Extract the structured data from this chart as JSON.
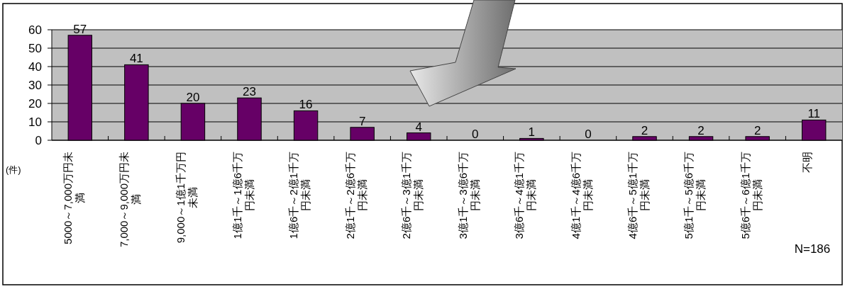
{
  "chart_data": {
    "type": "bar",
    "ylabel": "(件)",
    "categories": [
      "5000～7,000万円未満",
      "7,000～9,000万円未満",
      "9,000～1億1千万円未満",
      "1億1千～1億6千万円未満",
      "1億6千～2億1千万円未満",
      "2億1千～2億6千万円未満",
      "2億6千～3億1千万円未満",
      "3億1千～3億6千万円未満",
      "3億6千～4億1千万円未満",
      "4億1千～4億6千万円未満",
      "4億6千～5億1千万円未満",
      "5億1千～5億6千万円未満",
      "5億6千～6億1千万円未満",
      "不明"
    ],
    "values": [
      57,
      41,
      20,
      23,
      16,
      7,
      4,
      0,
      1,
      0,
      2,
      2,
      2,
      11
    ],
    "color": "#660066",
    "ylim": [
      0,
      60
    ],
    "yticks": [
      0,
      10,
      20,
      30,
      40,
      50,
      60
    ],
    "grid": "y",
    "data_labels": true,
    "annotations": [
      "N=186"
    ]
  }
}
